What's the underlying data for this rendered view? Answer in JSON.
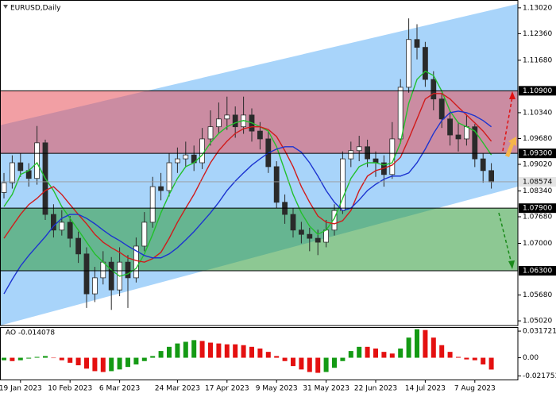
{
  "chart_data": [
    {
      "type": "candlestick",
      "title": "EURUSD,Daily",
      "categories": [
        null,
        null,
        "19 Jan 2023",
        null,
        null,
        null,
        null,
        null,
        "10 Feb 2023",
        null,
        null,
        null,
        null,
        null,
        "6 Mar 2023",
        null,
        null,
        null,
        null,
        null,
        null,
        "24 Mar 2023",
        null,
        null,
        null,
        null,
        null,
        "17 Apr 2023",
        null,
        null,
        null,
        null,
        null,
        "9 May 2023",
        null,
        null,
        null,
        null,
        null,
        "31 May 2023",
        null,
        null,
        null,
        null,
        null,
        "22 Jun 2023",
        null,
        null,
        null,
        null,
        null,
        "14 Jul 2023",
        null,
        null,
        null,
        null,
        null,
        "7 Aug 2023",
        null,
        null
      ],
      "open": [
        1.083,
        1.0855,
        1.0906,
        1.0886,
        1.0866,
        1.0957,
        1.0774,
        1.0734,
        1.0754,
        1.0713,
        1.0673,
        1.0571,
        1.0612,
        1.0652,
        1.0581,
        1.0652,
        1.0612,
        1.0693,
        1.0754,
        1.0845,
        1.0835,
        1.0906,
        1.0916,
        1.0926,
        1.0906,
        1.0967,
        1.0998,
        1.1018,
        1.1028,
        1.0998,
        1.1028,
        1.0987,
        1.0967,
        1.0896,
        1.0805,
        1.0774,
        1.0734,
        1.0723,
        1.0713,
        1.0703,
        1.0734,
        1.0784,
        1.0916,
        1.0937,
        1.0947,
        1.0916,
        1.0906,
        1.0876,
        1.0967,
        1.1099,
        1.1221,
        1.1201,
        1.1119,
        1.1069,
        1.1018,
        1.0977,
        1.0967,
        1.0998,
        1.0916,
        1.0886
      ],
      "high": [
        1.088,
        1.0925,
        1.093,
        1.0905,
        1.1,
        1.0965,
        1.08,
        1.0785,
        1.077,
        1.073,
        1.069,
        1.064,
        1.068,
        1.0665,
        1.069,
        1.067,
        1.0715,
        1.078,
        1.087,
        1.088,
        1.093,
        1.0945,
        1.096,
        1.095,
        1.0995,
        1.104,
        1.106,
        1.1075,
        1.105,
        1.1075,
        1.1045,
        1.101,
        1.0985,
        1.091,
        1.0825,
        1.079,
        1.0755,
        1.074,
        1.0735,
        1.076,
        1.08,
        1.0935,
        1.096,
        1.0975,
        1.0965,
        1.0935,
        1.0925,
        1.101,
        1.112,
        1.1275,
        1.126,
        1.1215,
        1.114,
        1.1085,
        1.104,
        1.101,
        1.103,
        1.1005,
        1.093,
        1.0905
      ],
      "low": [
        1.0815,
        1.084,
        1.087,
        1.0845,
        1.085,
        1.076,
        1.0715,
        1.072,
        1.069,
        1.065,
        1.0535,
        1.055,
        1.0595,
        1.053,
        1.0565,
        1.0535,
        1.06,
        1.068,
        1.074,
        1.081,
        1.082,
        1.088,
        1.0895,
        1.0885,
        1.089,
        1.095,
        1.098,
        1.099,
        1.097,
        1.098,
        1.096,
        1.094,
        1.088,
        1.079,
        1.075,
        1.0715,
        1.07,
        1.068,
        1.067,
        1.069,
        1.072,
        1.0775,
        1.0895,
        1.091,
        1.0895,
        1.087,
        1.0845,
        1.0865,
        1.0955,
        1.1085,
        1.117,
        1.11,
        1.104,
        1.0995,
        1.095,
        1.0935,
        1.095,
        1.0895,
        1.0855,
        1.084
      ],
      "close": [
        1.0855,
        1.0906,
        1.0886,
        1.0866,
        1.0957,
        1.0774,
        1.0734,
        1.0754,
        1.0713,
        1.0673,
        1.0571,
        1.0612,
        1.0652,
        1.0581,
        1.0652,
        1.0612,
        1.0693,
        1.0754,
        1.0845,
        1.0835,
        1.0906,
        1.0916,
        1.0926,
        1.0906,
        1.0967,
        1.0998,
        1.1018,
        1.1028,
        1.0998,
        1.1028,
        1.0987,
        1.0967,
        1.0896,
        1.0805,
        1.0774,
        1.0734,
        1.0723,
        1.0713,
        1.0703,
        1.0734,
        1.0784,
        1.0916,
        1.0937,
        1.0947,
        1.0916,
        1.0906,
        1.0876,
        1.0967,
        1.1099,
        1.1221,
        1.1201,
        1.1119,
        1.1069,
        1.1018,
        1.0977,
        1.0967,
        1.0998,
        1.0916,
        1.0886,
        1.0857
      ],
      "candle_colors": {
        "up": "#ffffff",
        "down": "#2a2a2a",
        "wick": "#2a2a2a"
      },
      "series": [
        {
          "color": "#22c02c",
          "values": [
            1.0794,
            1.0825,
            1.0876,
            1.0886,
            1.0906,
            1.0866,
            1.0835,
            1.0794,
            1.0764,
            1.0734,
            1.0703,
            1.0673,
            1.0652,
            1.0632,
            1.0616,
            1.0622,
            1.0636,
            1.0673,
            1.0723,
            1.0778,
            1.0825,
            1.0866,
            1.0896,
            1.0906,
            1.0926,
            1.0957,
            1.0981,
            1.0998,
            1.1008,
            1.1014,
            1.1008,
            1.0998,
            1.0987,
            1.0947,
            1.0886,
            1.0825,
            1.0778,
            1.0744,
            1.0723,
            1.0734,
            1.0764,
            1.0815,
            1.0866,
            1.0896,
            1.0906,
            1.0906,
            1.09,
            1.0906,
            1.0957,
            1.1058,
            1.1119,
            1.114,
            1.1129,
            1.1089,
            1.1038,
            1.1008,
            1.0998,
            1.0987,
            1.0957,
            1.0926
          ]
        },
        {
          "color": "#d01c1c",
          "values": [
            1.0713,
            1.0744,
            1.0774,
            1.0799,
            1.0815,
            1.0835,
            1.0845,
            1.0825,
            1.0799,
            1.0774,
            1.075,
            1.0723,
            1.0703,
            1.0689,
            1.0677,
            1.0663,
            1.0656,
            1.0652,
            1.0661,
            1.0677,
            1.0713,
            1.0754,
            1.079,
            1.0825,
            1.0866,
            1.0906,
            1.0937,
            1.0961,
            1.0981,
            1.0993,
            1.0998,
            1.0998,
            1.0991,
            1.0973,
            1.0937,
            1.0896,
            1.0845,
            1.0805,
            1.077,
            1.0754,
            1.075,
            1.0758,
            1.0784,
            1.0835,
            1.0872,
            1.0886,
            1.0892,
            1.09,
            1.092,
            1.0967,
            1.1018,
            1.1069,
            1.1083,
            1.1083,
            1.1069,
            1.1048,
            1.1028,
            1.1008,
            1.0987,
            1.0961
          ]
        },
        {
          "color": "#1c34d0",
          "values": [
            1.0571,
            1.0608,
            1.0642,
            1.0669,
            1.0693,
            1.0717,
            1.0744,
            1.0764,
            1.0774,
            1.0774,
            1.0764,
            1.075,
            1.0734,
            1.0719,
            1.0707,
            1.0693,
            1.0681,
            1.0669,
            1.0663,
            1.0663,
            1.0673,
            1.0689,
            1.0709,
            1.073,
            1.0754,
            1.0778,
            1.0805,
            1.0835,
            1.0859,
            1.088,
            1.09,
            1.0916,
            1.0931,
            1.0941,
            1.0947,
            1.0947,
            1.0933,
            1.0906,
            1.0872,
            1.0835,
            1.0805,
            1.0784,
            1.079,
            1.0811,
            1.0835,
            1.0851,
            1.0864,
            1.0872,
            1.0872,
            1.088,
            1.0906,
            1.0941,
            1.0981,
            1.1014,
            1.1034,
            1.1038,
            1.1034,
            1.1026,
            1.1014,
            1.0998
          ]
        }
      ],
      "channel_color": "#a8d4fa",
      "channel_upper": [
        1.1002,
        1.1312
      ],
      "channel_lower": [
        1.049,
        1.0845
      ],
      "levels": [
        {
          "value": 1.109,
          "label": "1.10900"
        },
        {
          "value": 1.093,
          "label": "1.09300"
        },
        {
          "value": 1.079,
          "label": "1.07900"
        },
        {
          "value": 1.063,
          "label": "1.06300"
        }
      ],
      "zone_colors": [
        "#e8505a",
        "#2f9a3a"
      ],
      "last_price": 1.08574,
      "ylim": [
        1.049,
        1.1322
      ],
      "yticks": [
        {
          "value": 1.1302,
          "label": "1.13020"
        },
        {
          "value": 1.1236,
          "label": "1.12360"
        },
        {
          "value": 1.1168,
          "label": "1.11680"
        },
        {
          "value": 1.1034,
          "label": "1.10340"
        },
        {
          "value": 1.0968,
          "label": "1.09680"
        },
        {
          "value": 1.0902,
          "label": "1.09020"
        },
        {
          "value": 1.0834,
          "label": "1.08340"
        },
        {
          "value": 1.0768,
          "label": "1.07680"
        },
        {
          "value": 1.07,
          "label": "1.07000"
        },
        {
          "value": 1.0568,
          "label": "1.05680"
        },
        {
          "value": 1.0502,
          "label": "1.05020"
        }
      ]
    },
    {
      "type": "bar",
      "title": "AO -0.014078",
      "values": [
        -0.003,
        -0.004,
        -0.003,
        -0.001,
        0.001,
        0.002,
        0.0,
        -0.003,
        -0.006,
        -0.009,
        -0.013,
        -0.016,
        -0.017,
        -0.016,
        -0.014,
        -0.011,
        -0.008,
        -0.004,
        0.002,
        0.008,
        0.013,
        0.017,
        0.019,
        0.021,
        0.02,
        0.018,
        0.017,
        0.016,
        0.016,
        0.015,
        0.013,
        0.011,
        0.007,
        0.002,
        -0.004,
        -0.01,
        -0.014,
        -0.017,
        -0.018,
        -0.017,
        -0.012,
        -0.004,
        0.008,
        0.013,
        0.013,
        0.011,
        0.007,
        0.005,
        0.011,
        0.024,
        0.034,
        0.033,
        0.024,
        0.015,
        0.007,
        0.001,
        -0.002,
        -0.003,
        -0.008,
        -0.0141
      ],
      "colors": {
        "rise": "#149a14",
        "fall": "#e41010"
      },
      "ylim": [
        -0.026,
        0.0365
      ],
      "yticks": [
        0.031721,
        {
          "value": 0,
          "label": "0.00"
        },
        -0.021753
      ]
    }
  ]
}
